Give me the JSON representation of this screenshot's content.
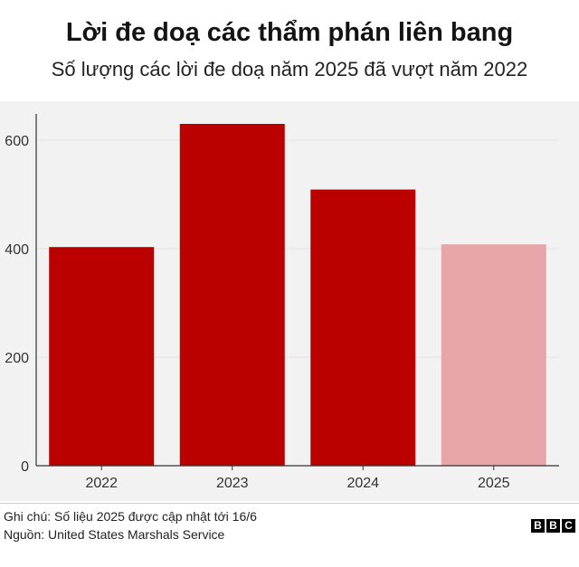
{
  "header": {
    "title": "Lời đe doạ các thẩm phán liên bang",
    "subtitle": "Số lượng các lời đe doạ năm 2025 đã vượt năm 2022"
  },
  "chart_data": {
    "type": "bar",
    "categories": [
      "2022",
      "2023",
      "2024",
      "2025"
    ],
    "values": [
      403,
      630,
      509,
      408
    ],
    "bar_colors": [
      "#bb0000",
      "#bb0000",
      "#bb0000",
      "#e8a5a8"
    ],
    "ylim": [
      0,
      660
    ],
    "yticks": [
      0,
      200,
      400,
      600
    ],
    "ytick_labels": [
      "0",
      "200",
      "400",
      "600"
    ],
    "grid": true,
    "background": "#f2f2f2"
  },
  "footer": {
    "note": "Ghi chú: Số liệu 2025 được cập nhật tới 16/6",
    "source": "Nguồn: United States Marshals Service",
    "logo": [
      "B",
      "B",
      "C"
    ]
  }
}
